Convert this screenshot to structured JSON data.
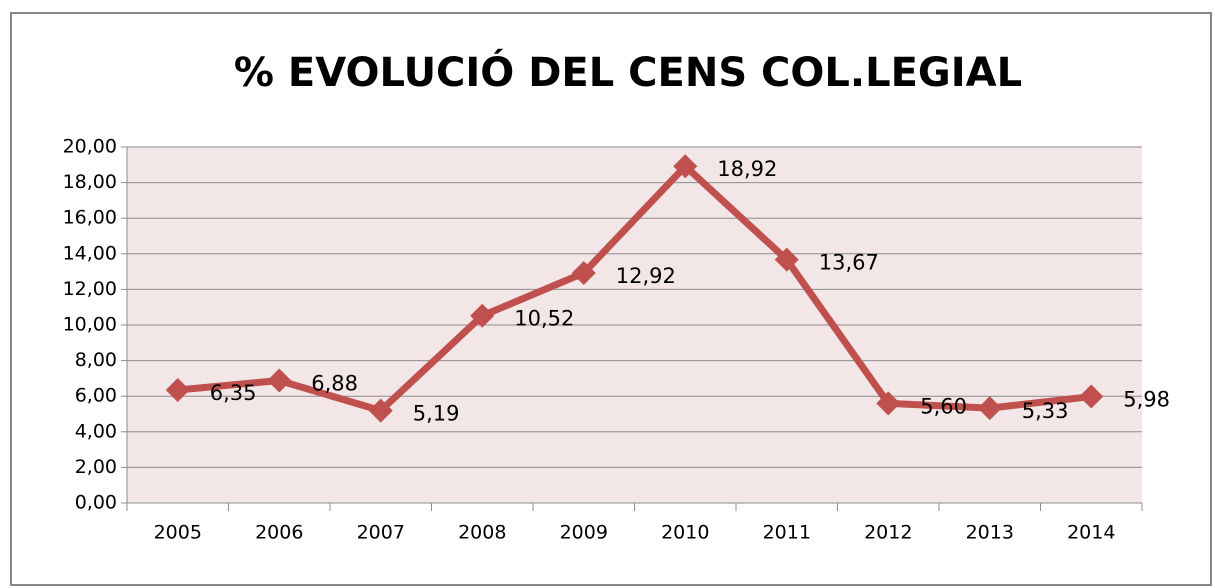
{
  "chart_data": {
    "type": "line",
    "title": "% EVOLUCIÓ DEL CENS COL.LEGIAL",
    "categories": [
      "2005",
      "2006",
      "2007",
      "2008",
      "2009",
      "2010",
      "2011",
      "2012",
      "2013",
      "2014"
    ],
    "values": [
      6.35,
      6.88,
      5.19,
      10.52,
      12.92,
      18.92,
      13.67,
      5.6,
      5.33,
      5.98
    ],
    "value_labels": [
      "6,35",
      "6,88",
      "5,19",
      "10,52",
      "12,92",
      "18,92",
      "13,67",
      "5,60",
      "5,33",
      "5,98"
    ],
    "color": "#c0504d",
    "ylim": [
      0,
      20
    ],
    "yticks": [
      {
        "value": 0,
        "label": "0,00"
      },
      {
        "value": 2,
        "label": "2,00"
      },
      {
        "value": 4,
        "label": "4,00"
      },
      {
        "value": 6,
        "label": "6,00"
      },
      {
        "value": 8,
        "label": "8,00"
      },
      {
        "value": 10,
        "label": "10,00"
      },
      {
        "value": 12,
        "label": "12,00"
      },
      {
        "value": 14,
        "label": "14,00"
      },
      {
        "value": 16,
        "label": "16,00"
      },
      {
        "value": 18,
        "label": "18,00"
      },
      {
        "value": 20,
        "label": "20,00"
      }
    ],
    "grid": true
  }
}
